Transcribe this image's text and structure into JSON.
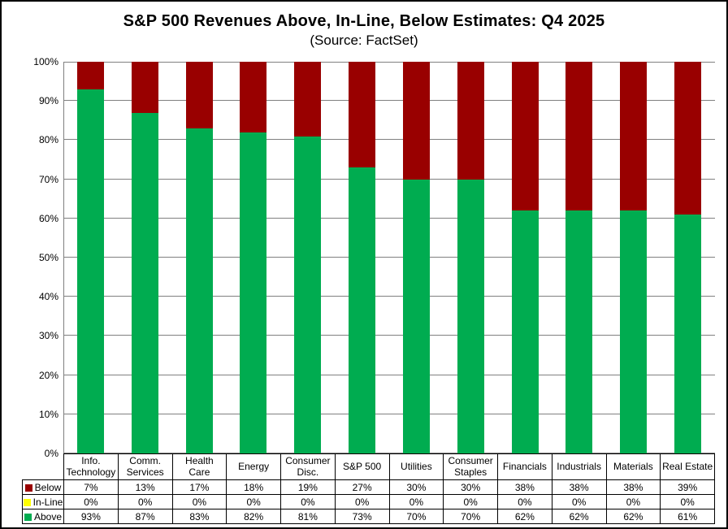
{
  "chart_data": {
    "type": "bar",
    "stacked": true,
    "title": "S&P 500 Revenues Above, In-Line, Below Estimates: Q4 2025",
    "subtitle": "(Source: FactSet)",
    "categories": [
      "Info. Technology",
      "Comm. Services",
      "Health Care",
      "Energy",
      "Consumer Disc.",
      "S&P 500",
      "Utilities",
      "Consumer Staples",
      "Financials",
      "Industrials",
      "Materials",
      "Real Estate"
    ],
    "series": [
      {
        "name": "Below",
        "color": "#990000",
        "values": [
          7,
          13,
          17,
          18,
          19,
          27,
          30,
          30,
          38,
          38,
          38,
          39
        ]
      },
      {
        "name": "In-Line",
        "color": "#FFFF00",
        "values": [
          0,
          0,
          0,
          0,
          0,
          0,
          0,
          0,
          0,
          0,
          0,
          0
        ]
      },
      {
        "name": "Above",
        "color": "#00AC50",
        "values": [
          93,
          87,
          83,
          82,
          81,
          73,
          70,
          70,
          62,
          62,
          62,
          61
        ]
      }
    ],
    "stack_order_bottom_to_top": [
      "Above",
      "In-Line",
      "Below"
    ],
    "value_suffix": "%",
    "ylim": [
      0,
      100
    ],
    "yticks": [
      "0%",
      "10%",
      "20%",
      "30%",
      "40%",
      "50%",
      "60%",
      "70%",
      "80%",
      "90%",
      "100%"
    ],
    "grid": true,
    "gridline_color": "#808080",
    "legend_position": "data-table-left",
    "data_table_shown": true
  }
}
